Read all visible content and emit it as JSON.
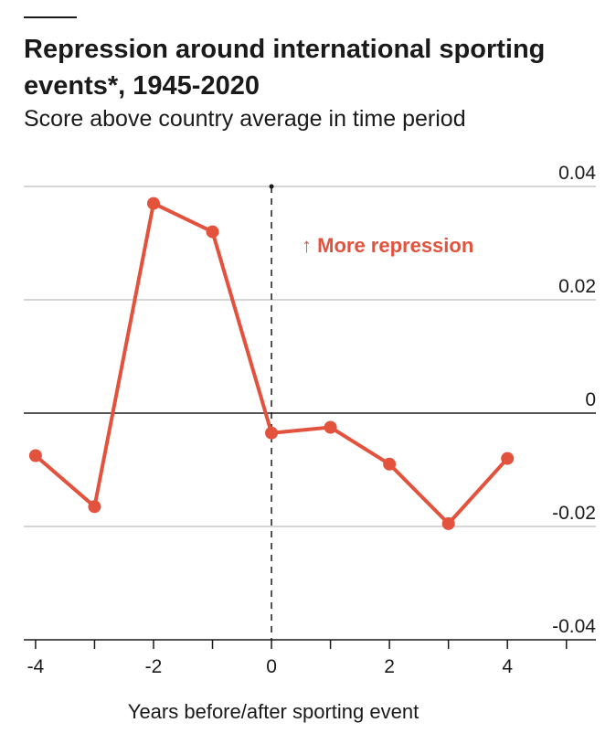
{
  "header": {
    "title": "Repression around international sporting events*, 1945-2020",
    "subtitle": "Score above country average in time period"
  },
  "chart_data": {
    "type": "line",
    "title": "Repression around international sporting events*, 1945-2020",
    "subtitle": "Score above country average in time period",
    "xlabel": "Years before/after sporting event",
    "ylabel": "",
    "x": [
      -4,
      -3,
      -2,
      -1,
      0,
      1,
      2,
      3,
      4
    ],
    "series": [
      {
        "values": [
          -0.0075,
          -0.0165,
          0.037,
          0.032,
          -0.0035,
          -0.0025,
          -0.009,
          -0.0195,
          -0.008
        ]
      }
    ],
    "xlim": [
      -4.2,
      5.5
    ],
    "ylim": [
      -0.04,
      0.04
    ],
    "x_ticks": [
      -4,
      -2,
      0,
      2,
      4
    ],
    "x_tick_labels": [
      "-4",
      "-2",
      "0",
      "2",
      "4"
    ],
    "y_ticks": [
      0.04,
      0.02,
      0,
      -0.02,
      -0.04
    ],
    "y_tick_labels": [
      "0.04",
      "0.02",
      "0",
      "-0.02",
      "-0.04"
    ],
    "reference_line_x": 0,
    "annotation": "↑ More repression",
    "grid": true,
    "colors": {
      "line": "#e3523c",
      "grid": "#c8c8c8",
      "axis": "#1a1a1a"
    }
  }
}
